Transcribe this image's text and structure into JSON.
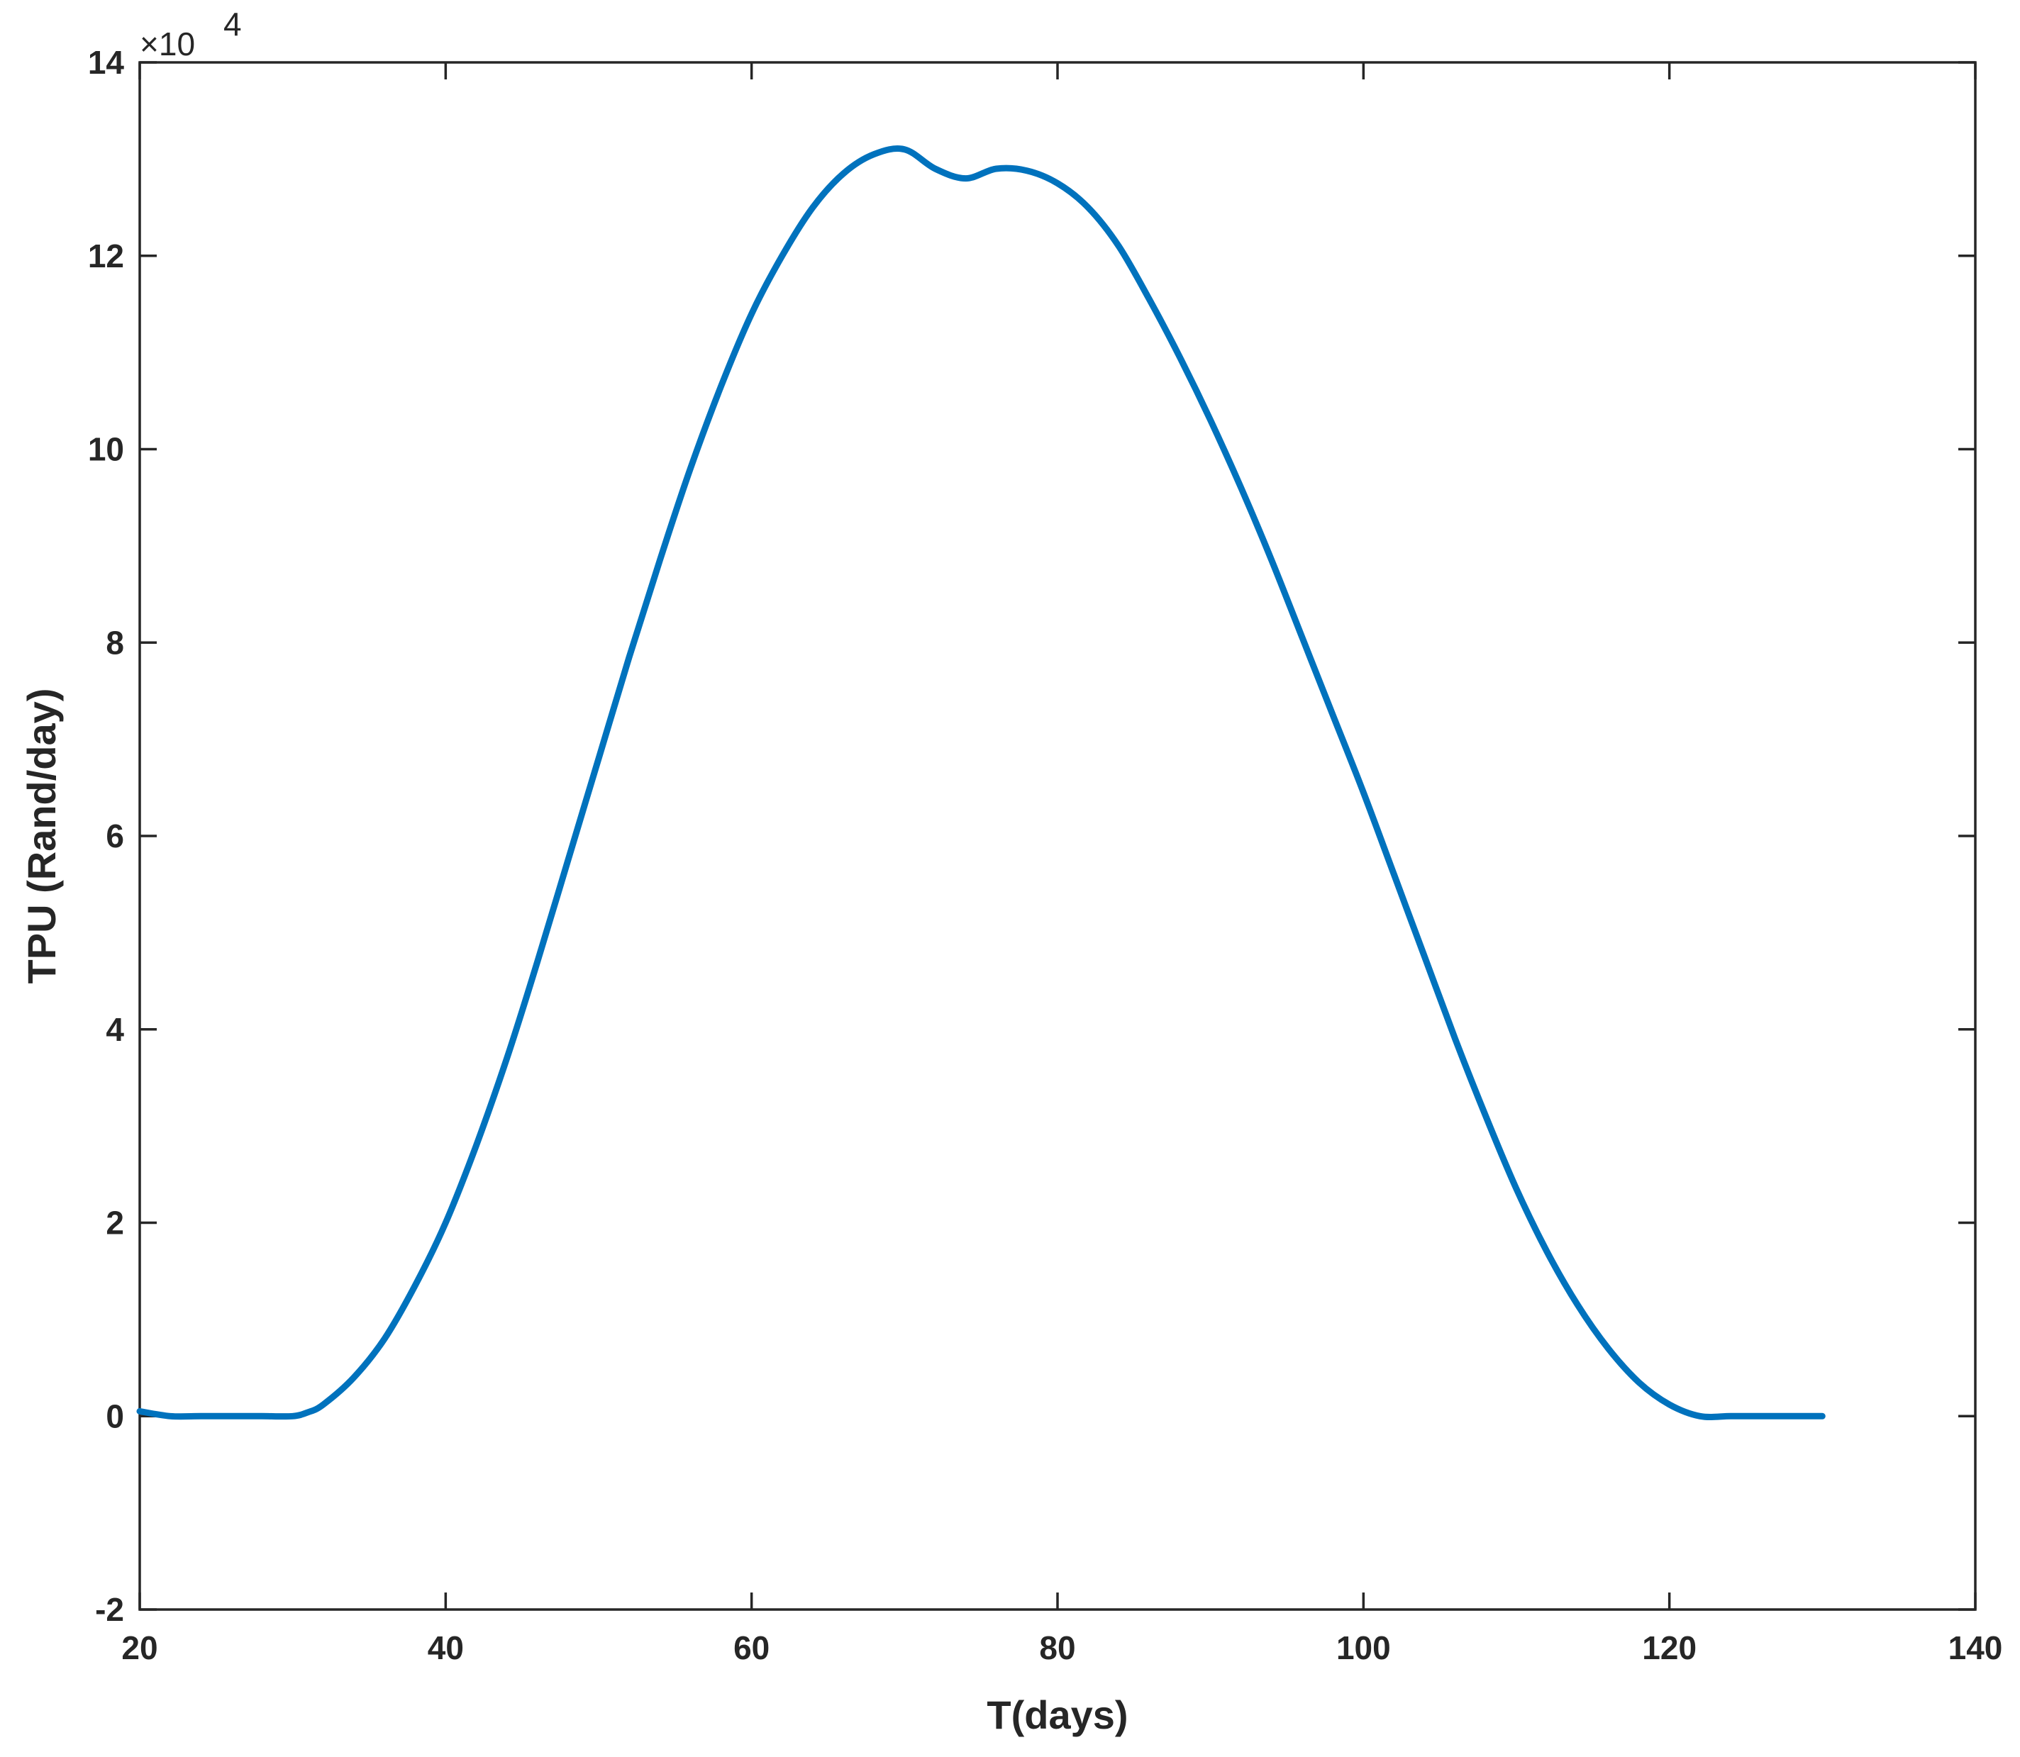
{
  "chart_data": {
    "type": "line",
    "title": "",
    "xlabel": "T(days)",
    "ylabel": "TPU (Rand/day)",
    "y_exponent_label": "×10",
    "y_exponent_power": "4",
    "xlim": [
      20,
      140
    ],
    "ylim": [
      -2,
      14
    ],
    "xticks": [
      20,
      40,
      60,
      80,
      100,
      120,
      140
    ],
    "yticks": [
      -2,
      0,
      2,
      4,
      6,
      8,
      10,
      12,
      14
    ],
    "xtick_labels": [
      "20",
      "40",
      "60",
      "80",
      "100",
      "120",
      "140"
    ],
    "ytick_labels": [
      "-2",
      "0",
      "2",
      "4",
      "6",
      "8",
      "10",
      "12",
      "14"
    ],
    "grid": false,
    "line_color": "#0072BD",
    "axis_color": "#262626",
    "series": [
      {
        "x": [
          20,
          22,
          24,
          26,
          28,
          30,
          31,
          32,
          34,
          36,
          38,
          40,
          42,
          44,
          46,
          48,
          50,
          52,
          54,
          56,
          58,
          60,
          62,
          64,
          66,
          68,
          70,
          72,
          74,
          76,
          78,
          80,
          82,
          84,
          86,
          88,
          90,
          92,
          94,
          96,
          98,
          100,
          102,
          104,
          106,
          108,
          110,
          112,
          114,
          116,
          118,
          120,
          122,
          124,
          126,
          128,
          130
        ],
        "y": [
          0.05,
          0.0,
          0.0,
          0.0,
          0.0,
          0.0,
          0.04,
          0.12,
          0.4,
          0.8,
          1.35,
          2.0,
          2.8,
          3.7,
          4.7,
          5.75,
          6.8,
          7.85,
          8.85,
          9.8,
          10.65,
          11.4,
          12.0,
          12.5,
          12.85,
          13.05,
          13.1,
          12.9,
          12.8,
          12.9,
          12.88,
          12.75,
          12.5,
          12.1,
          11.55,
          10.95,
          10.3,
          9.6,
          8.85,
          8.05,
          7.25,
          6.45,
          5.6,
          4.75,
          3.9,
          3.1,
          2.35,
          1.7,
          1.15,
          0.7,
          0.35,
          0.12,
          0.0,
          0.0,
          0.0,
          0.0,
          0.0
        ]
      }
    ]
  }
}
